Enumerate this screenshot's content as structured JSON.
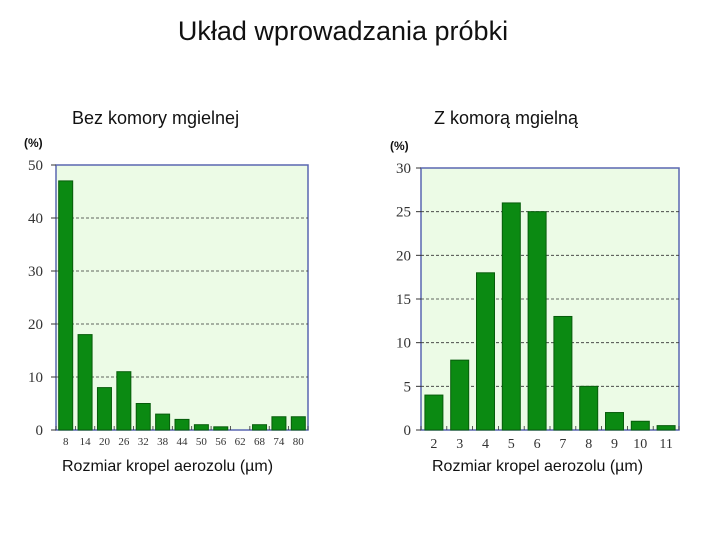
{
  "page": {
    "title": "Układ wprowadzania próbki"
  },
  "colors": {
    "bar_fill": "#0b8a12",
    "bar_stroke": "#075c0b",
    "plot_bg": "#ecfbe6",
    "frame": "#5a67b0",
    "grid": "#333333"
  },
  "chart_data": [
    {
      "type": "bar",
      "title": "Bez komory mgielnej",
      "xlabel": "Rozmiar kropel aerozolu (µm)",
      "ylabel": "(%)",
      "categories": [
        "8",
        "14",
        "20",
        "26",
        "32",
        "38",
        "44",
        "50",
        "56",
        "62",
        "68",
        "74",
        "80"
      ],
      "values": [
        47,
        18,
        8,
        11,
        5,
        3,
        2,
        1,
        0.6,
        0,
        1,
        2.5,
        2.5
      ],
      "ylim": [
        0,
        50
      ],
      "yticks": [
        "0",
        "10",
        "20",
        "30",
        "40",
        "50"
      ],
      "grid": "horizontal dashed"
    },
    {
      "type": "bar",
      "title": "Z komorą mgielną",
      "xlabel": "Rozmiar kropel aerozolu (µm)",
      "ylabel": "(%)",
      "categories": [
        "2",
        "3",
        "4",
        "5",
        "6",
        "7",
        "8",
        "9",
        "10",
        "11"
      ],
      "values": [
        4,
        8,
        18,
        26,
        25,
        13,
        5,
        2,
        1,
        0.5
      ],
      "ylim": [
        0,
        30
      ],
      "yticks": [
        "0",
        "5",
        "10",
        "15",
        "20",
        "25",
        "30"
      ],
      "grid": "horizontal dashed"
    }
  ]
}
